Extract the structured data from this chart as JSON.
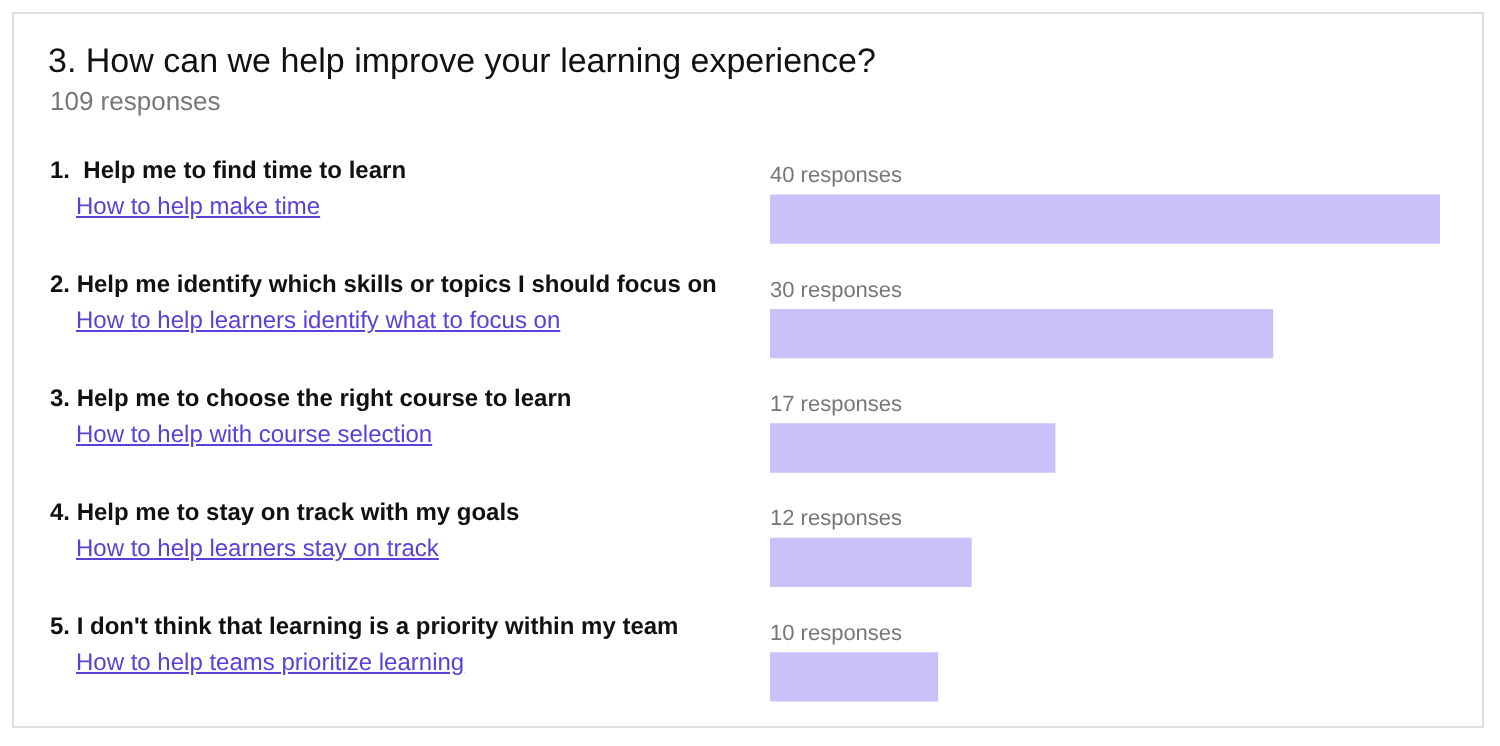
{
  "chart_data": {
    "type": "bar",
    "orientation": "horizontal",
    "title": "3. How can we help improve your learning experience?",
    "subtitle": "109 responses",
    "categories": [
      "1.  Help me to find time to learn",
      "2. Help me identify which skills or topics I should focus on",
      "3. Help me to choose the right course to learn",
      "4. Help me to stay on track with my goals",
      "5. I don't think that learning is a priority within my team"
    ],
    "values": [
      40,
      30,
      17,
      12,
      10
    ],
    "value_labels": [
      "40 responses",
      "30 responses",
      "17 responses",
      "12 responses",
      "10 responses"
    ],
    "color": "#cbc0fa",
    "annotations": [
      "How to help make time",
      "How to help learners identify what to focus on",
      "How to help with course selection",
      "How to help learners stay on track",
      "How to help teams prioritize learning"
    ],
    "legend": false
  }
}
